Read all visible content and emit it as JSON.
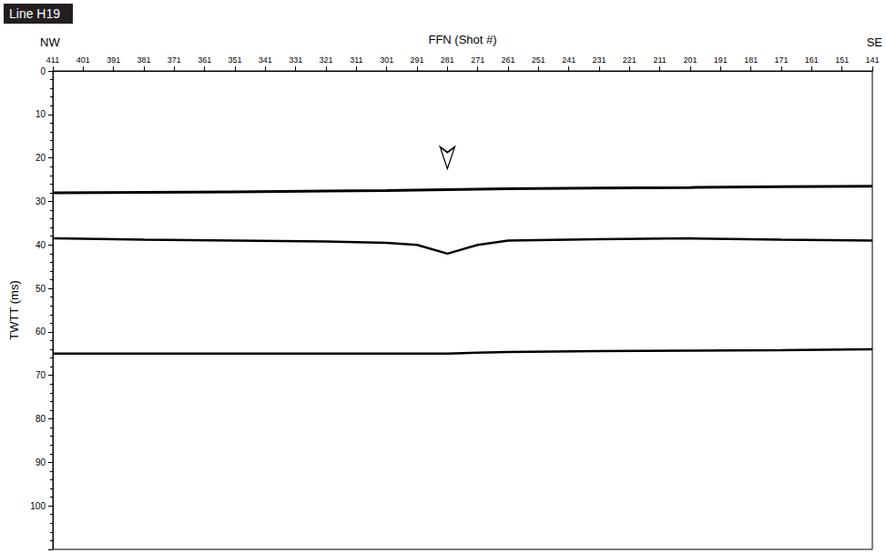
{
  "chart_data": {
    "type": "line",
    "title": "Line H19",
    "left_label": "NW",
    "right_label": "SE",
    "x_label": "FFN (Shot #)",
    "y_label": "TWTT (ms)",
    "x": [
      411,
      381,
      351,
      321,
      301,
      291,
      281,
      271,
      261,
      231,
      201,
      171,
      141
    ],
    "series": [
      {
        "color": "#000000",
        "values": [
          28,
          27.9,
          27.8,
          27.6,
          27.5,
          27.4,
          27.3,
          27.2,
          27.1,
          26.9,
          26.8,
          26.6,
          26.5
        ]
      },
      {
        "color": "#000000",
        "values": [
          38.5,
          38.8,
          39,
          39.2,
          39.5,
          40,
          42,
          40,
          39,
          38.7,
          38.5,
          38.8,
          39
        ]
      },
      {
        "color": "#000000",
        "values": [
          65,
          65,
          65,
          65,
          65,
          65,
          65,
          64.8,
          64.6,
          64.4,
          64.3,
          64.2,
          64
        ]
      }
    ],
    "arrow": {
      "x": 281,
      "y": 25
    },
    "xlim": [
      411,
      141
    ],
    "xticks": [
      411,
      401,
      391,
      381,
      371,
      361,
      351,
      341,
      331,
      321,
      311,
      301,
      291,
      281,
      271,
      261,
      251,
      241,
      231,
      221,
      211,
      201,
      191,
      181,
      171,
      161,
      151,
      141
    ],
    "ylim": [
      0,
      110
    ],
    "yticks": [
      0,
      10,
      20,
      30,
      40,
      50,
      60,
      70,
      80,
      90,
      100
    ],
    "grid": false
  }
}
